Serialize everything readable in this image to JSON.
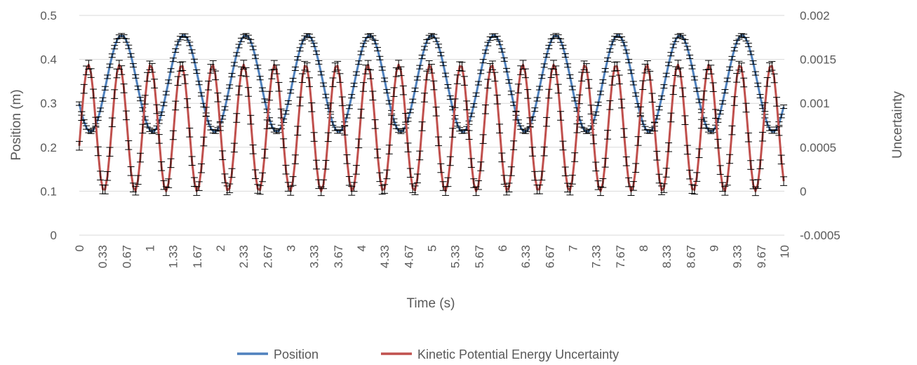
{
  "chart_data": {
    "type": "line",
    "xlabel": "Time (s)",
    "ylabel_left": "Position (m)",
    "ylabel_right": "Uncertainty",
    "xlim": [
      0,
      10
    ],
    "ylim_left": [
      0,
      0.5
    ],
    "ylim_right": [
      -0.0005,
      0.002
    ],
    "y_ticks_left": [
      "0",
      "0.1",
      "0.2",
      "0.3",
      "0.4",
      "0.5"
    ],
    "y_ticks_right": [
      "-0.0005",
      "0",
      "0.0005",
      "0.001",
      "0.0015",
      "0.002"
    ],
    "x_tick_labels": [
      "0",
      "0.33",
      "0.67",
      "1",
      "1.33",
      "1.67",
      "2",
      "2.33",
      "2.67",
      "3",
      "3.33",
      "3.67",
      "4",
      "4.33",
      "4.67",
      "5",
      "5.33",
      "5.67",
      "6",
      "6.33",
      "6.67",
      "7",
      "7.33",
      "7.67",
      "8",
      "8.33",
      "8.67",
      "9",
      "9.33",
      "9.67",
      "10"
    ],
    "grid": true,
    "legend_position": "bottom",
    "error_bars": true,
    "series": [
      {
        "name": "Position",
        "axis": "left",
        "color": "#4f81bd",
        "x_step": 0.0333,
        "points_description": "sinusoid, mean ≈0.345 m, amplitude ≈0.11 m, period ≈0.88 s",
        "mean": 0.345,
        "amplitude": 0.11,
        "period": 0.88,
        "x_at_first_peak": 0.6,
        "y_error": 0.004
      },
      {
        "name": "Kinetic Potential Energy Uncertainty",
        "axis": "right",
        "color": "#c0504d",
        "x_step": 0.0333,
        "mean": 0.00072,
        "amplitude": 0.00072,
        "period": 0.44,
        "x_at_first_peak": 0.13,
        "y_error": 5e-05
      }
    ]
  }
}
